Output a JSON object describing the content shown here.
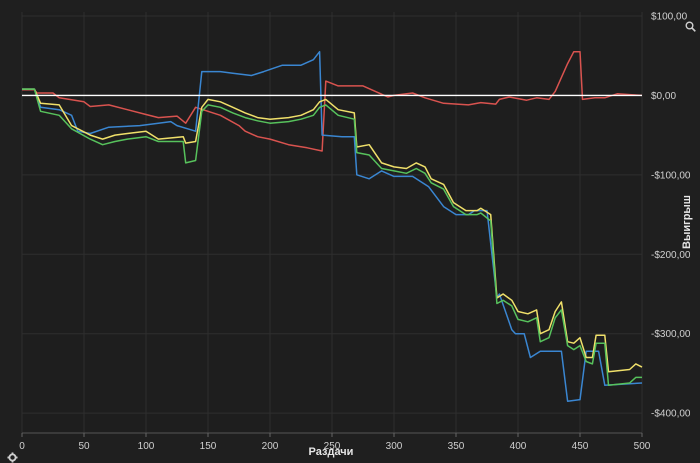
{
  "chart_data": {
    "type": "line",
    "xlabel": "Раздачи",
    "ylabel": "Выигрыш",
    "xlim": [
      0,
      500
    ],
    "ylim": [
      -425,
      105
    ],
    "grid": true,
    "x_ticks": [
      "0",
      "50",
      "100",
      "150",
      "200",
      "250",
      "300",
      "350",
      "400",
      "450",
      "500"
    ],
    "y_ticks": [
      {
        "value": 100,
        "label": "$100,00"
      },
      {
        "value": 0,
        "label": "$0,00"
      },
      {
        "value": -100,
        "label": "-$100,00"
      },
      {
        "value": -200,
        "label": "-$200,00"
      },
      {
        "value": -300,
        "label": "-$300,00"
      },
      {
        "value": -400,
        "label": "-$400,00"
      }
    ],
    "zero_line_color": "#ffffff",
    "series": [
      {
        "color": "#d9534f",
        "points": [
          [
            0,
            7
          ],
          [
            10,
            7
          ],
          [
            12,
            3
          ],
          [
            25,
            3
          ],
          [
            30,
            -3
          ],
          [
            50,
            -8
          ],
          [
            55,
            -14
          ],
          [
            70,
            -12
          ],
          [
            85,
            -18
          ],
          [
            100,
            -24
          ],
          [
            110,
            -28
          ],
          [
            125,
            -26
          ],
          [
            132,
            -35
          ],
          [
            140,
            -15
          ],
          [
            150,
            -20
          ],
          [
            160,
            -25
          ],
          [
            175,
            -38
          ],
          [
            180,
            -45
          ],
          [
            190,
            -52
          ],
          [
            200,
            -55
          ],
          [
            215,
            -62
          ],
          [
            230,
            -66
          ],
          [
            242,
            -70
          ],
          [
            245,
            18
          ],
          [
            255,
            12
          ],
          [
            275,
            12
          ],
          [
            285,
            5
          ],
          [
            295,
            -2
          ],
          [
            300,
            0
          ],
          [
            315,
            3
          ],
          [
            325,
            -3
          ],
          [
            340,
            -10
          ],
          [
            360,
            -12
          ],
          [
            370,
            -9
          ],
          [
            382,
            -11
          ],
          [
            385,
            -5
          ],
          [
            393,
            -2
          ],
          [
            407,
            -6
          ],
          [
            415,
            -3
          ],
          [
            425,
            -5
          ],
          [
            430,
            5
          ],
          [
            440,
            40
          ],
          [
            445,
            55
          ],
          [
            450,
            55
          ],
          [
            452,
            -5
          ],
          [
            462,
            -3
          ],
          [
            470,
            -3
          ],
          [
            480,
            2
          ],
          [
            490,
            1
          ],
          [
            500,
            0
          ]
        ]
      },
      {
        "color": "#3a86d1",
        "points": [
          [
            0,
            8
          ],
          [
            10,
            8
          ],
          [
            15,
            -15
          ],
          [
            30,
            -18
          ],
          [
            40,
            -25
          ],
          [
            45,
            -45
          ],
          [
            55,
            -48
          ],
          [
            70,
            -40
          ],
          [
            95,
            -38
          ],
          [
            110,
            -35
          ],
          [
            120,
            -33
          ],
          [
            125,
            -38
          ],
          [
            140,
            -45
          ],
          [
            145,
            30
          ],
          [
            160,
            30
          ],
          [
            170,
            28
          ],
          [
            185,
            25
          ],
          [
            195,
            30
          ],
          [
            210,
            38
          ],
          [
            225,
            38
          ],
          [
            235,
            45
          ],
          [
            240,
            55
          ],
          [
            242,
            -50
          ],
          [
            258,
            -52
          ],
          [
            268,
            -52
          ],
          [
            270,
            -100
          ],
          [
            280,
            -105
          ],
          [
            290,
            -95
          ],
          [
            300,
            -102
          ],
          [
            315,
            -102
          ],
          [
            328,
            -115
          ],
          [
            340,
            -140
          ],
          [
            350,
            -150
          ],
          [
            360,
            -150
          ],
          [
            365,
            -145
          ],
          [
            375,
            -145
          ],
          [
            383,
            -255
          ],
          [
            385,
            -250
          ],
          [
            395,
            -295
          ],
          [
            398,
            -300
          ],
          [
            405,
            -300
          ],
          [
            410,
            -330
          ],
          [
            418,
            -322
          ],
          [
            435,
            -322
          ],
          [
            440,
            -385
          ],
          [
            450,
            -383
          ],
          [
            455,
            -322
          ],
          [
            465,
            -322
          ],
          [
            470,
            -365
          ],
          [
            500,
            -362
          ]
        ]
      },
      {
        "color": "#f0e06a",
        "points": [
          [
            0,
            8
          ],
          [
            10,
            8
          ],
          [
            15,
            -10
          ],
          [
            30,
            -12
          ],
          [
            40,
            -38
          ],
          [
            55,
            -50
          ],
          [
            65,
            -55
          ],
          [
            75,
            -50
          ],
          [
            85,
            -48
          ],
          [
            100,
            -45
          ],
          [
            110,
            -55
          ],
          [
            130,
            -52
          ],
          [
            132,
            -60
          ],
          [
            140,
            -58
          ],
          [
            145,
            -15
          ],
          [
            150,
            -5
          ],
          [
            160,
            -8
          ],
          [
            170,
            -15
          ],
          [
            180,
            -22
          ],
          [
            190,
            -28
          ],
          [
            200,
            -30
          ],
          [
            215,
            -28
          ],
          [
            225,
            -25
          ],
          [
            235,
            -18
          ],
          [
            240,
            -8
          ],
          [
            245,
            -5
          ],
          [
            255,
            -18
          ],
          [
            268,
            -22
          ],
          [
            270,
            -65
          ],
          [
            280,
            -62
          ],
          [
            290,
            -85
          ],
          [
            300,
            -90
          ],
          [
            310,
            -92
          ],
          [
            318,
            -85
          ],
          [
            325,
            -90
          ],
          [
            330,
            -105
          ],
          [
            340,
            -112
          ],
          [
            348,
            -135
          ],
          [
            358,
            -145
          ],
          [
            367,
            -145
          ],
          [
            370,
            -142
          ],
          [
            378,
            -150
          ],
          [
            383,
            -255
          ],
          [
            388,
            -250
          ],
          [
            395,
            -258
          ],
          [
            400,
            -272
          ],
          [
            408,
            -275
          ],
          [
            415,
            -270
          ],
          [
            418,
            -300
          ],
          [
            425,
            -295
          ],
          [
            430,
            -272
          ],
          [
            435,
            -260
          ],
          [
            440,
            -310
          ],
          [
            445,
            -312
          ],
          [
            450,
            -305
          ],
          [
            455,
            -330
          ],
          [
            460,
            -330
          ],
          [
            463,
            -302
          ],
          [
            470,
            -302
          ],
          [
            473,
            -348
          ],
          [
            490,
            -345
          ],
          [
            495,
            -338
          ],
          [
            500,
            -342
          ]
        ]
      },
      {
        "color": "#57c25c",
        "points": [
          [
            0,
            8
          ],
          [
            10,
            8
          ],
          [
            15,
            -20
          ],
          [
            30,
            -25
          ],
          [
            40,
            -42
          ],
          [
            55,
            -55
          ],
          [
            65,
            -62
          ],
          [
            75,
            -58
          ],
          [
            85,
            -55
          ],
          [
            100,
            -52
          ],
          [
            110,
            -58
          ],
          [
            130,
            -58
          ],
          [
            132,
            -85
          ],
          [
            140,
            -82
          ],
          [
            145,
            -20
          ],
          [
            150,
            -12
          ],
          [
            160,
            -15
          ],
          [
            170,
            -22
          ],
          [
            180,
            -28
          ],
          [
            190,
            -32
          ],
          [
            200,
            -35
          ],
          [
            215,
            -33
          ],
          [
            225,
            -30
          ],
          [
            235,
            -25
          ],
          [
            240,
            -15
          ],
          [
            245,
            -12
          ],
          [
            255,
            -25
          ],
          [
            268,
            -30
          ],
          [
            270,
            -72
          ],
          [
            280,
            -75
          ],
          [
            290,
            -92
          ],
          [
            300,
            -95
          ],
          [
            310,
            -98
          ],
          [
            318,
            -92
          ],
          [
            325,
            -98
          ],
          [
            330,
            -110
          ],
          [
            340,
            -118
          ],
          [
            348,
            -140
          ],
          [
            358,
            -150
          ],
          [
            367,
            -150
          ],
          [
            370,
            -148
          ],
          [
            378,
            -158
          ],
          [
            383,
            -262
          ],
          [
            388,
            -258
          ],
          [
            395,
            -265
          ],
          [
            400,
            -282
          ],
          [
            408,
            -285
          ],
          [
            415,
            -280
          ],
          [
            418,
            -310
          ],
          [
            425,
            -305
          ],
          [
            430,
            -280
          ],
          [
            435,
            -270
          ],
          [
            440,
            -315
          ],
          [
            445,
            -320
          ],
          [
            450,
            -315
          ],
          [
            455,
            -335
          ],
          [
            460,
            -338
          ],
          [
            463,
            -312
          ],
          [
            470,
            -312
          ],
          [
            473,
            -365
          ],
          [
            490,
            -362
          ],
          [
            495,
            -355
          ],
          [
            500,
            -355
          ]
        ]
      }
    ]
  }
}
